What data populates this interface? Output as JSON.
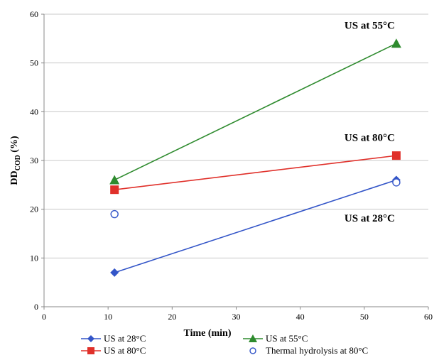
{
  "chart_data": {
    "type": "scatter",
    "title": "",
    "xlabel": "Time (min)",
    "ylabel": "DD",
    "ylabel_subscript": "COD",
    "ylabel_suffix": " (%)",
    "xlim": [
      0,
      60
    ],
    "ylim": [
      0,
      60
    ],
    "x_ticks": [
      0,
      10,
      20,
      30,
      40,
      50,
      60
    ],
    "y_ticks": [
      0,
      10,
      20,
      30,
      40,
      50,
      60
    ],
    "x_tick_labels": [
      "0",
      "10",
      "20",
      "30",
      "40",
      "50",
      "60"
    ],
    "y_tick_labels": [
      "0",
      "10",
      "20",
      "30",
      "40",
      "50",
      "60"
    ],
    "grid": "horizontal",
    "legend_position": "bottom",
    "series": [
      {
        "name": "US at 28°C",
        "marker": "diamond",
        "line": true,
        "color": "#3355c8",
        "x": [
          11,
          55
        ],
        "y": [
          7,
          26
        ]
      },
      {
        "name": "US at 55°C",
        "marker": "triangle",
        "line": true,
        "color": "#2e8b2e",
        "x": [
          11,
          55
        ],
        "y": [
          26,
          54
        ]
      },
      {
        "name": "US at 80°C",
        "marker": "square",
        "line": true,
        "color": "#e0302a",
        "x": [
          11,
          55
        ],
        "y": [
          24,
          31
        ]
      },
      {
        "name": "Thermal hydrolysis at 80°C",
        "marker": "open-circle",
        "line": false,
        "color": "#3355c8",
        "x": [
          11,
          55
        ],
        "y": [
          19,
          25.5
        ]
      }
    ],
    "annotations": [
      {
        "text": "US at 55°C",
        "x": 55,
        "y": 57
      },
      {
        "text": "US at 80°C",
        "x": 55,
        "y": 34
      },
      {
        "text": "US at 28°C",
        "x": 55,
        "y": 17.5
      }
    ]
  }
}
